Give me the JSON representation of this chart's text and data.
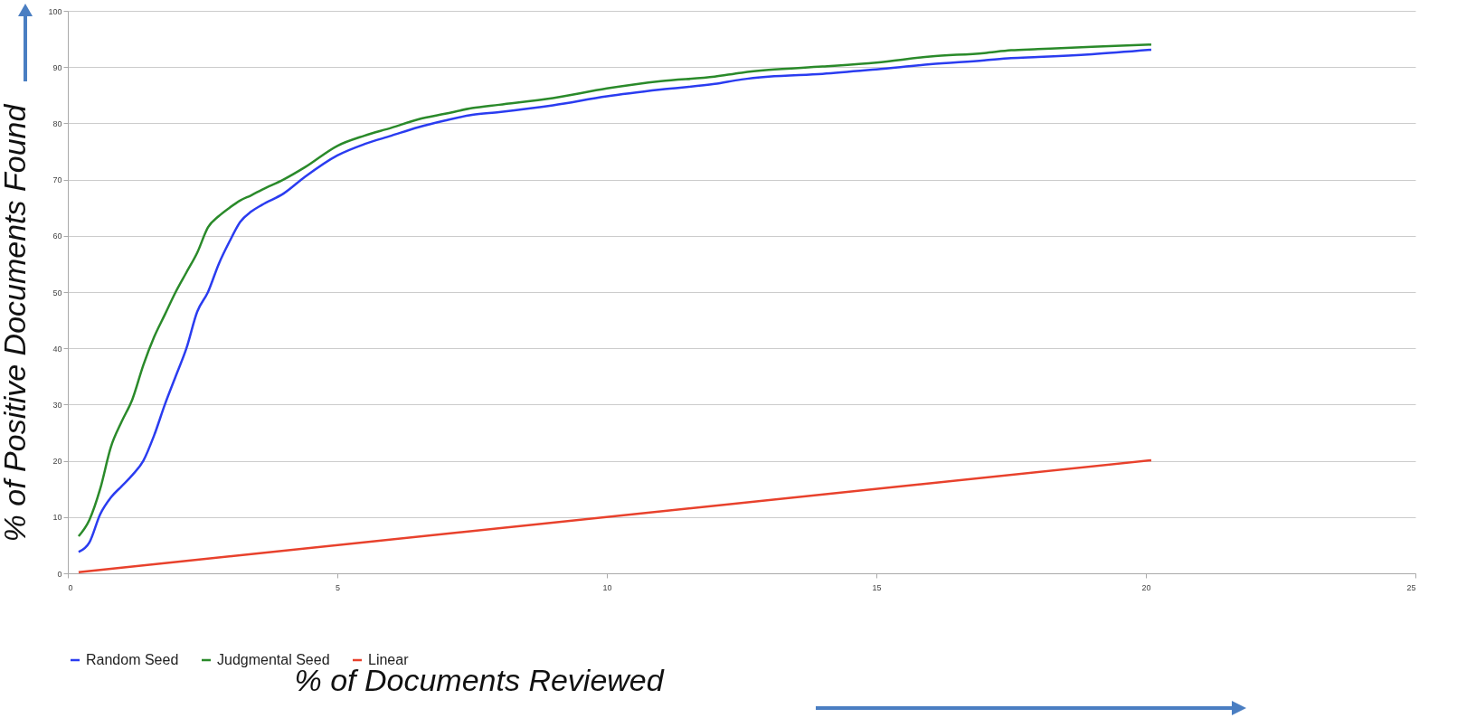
{
  "chart_data": {
    "type": "line",
    "xlabel": "% of Documents Reviewed",
    "ylabel": "% of Positive Documents Found",
    "xlim": [
      0,
      25
    ],
    "xticks": [
      0,
      5,
      10,
      15,
      20,
      25
    ],
    "ylim": [
      0,
      100
    ],
    "yticks": [
      0,
      10,
      20,
      30,
      40,
      50,
      60,
      70,
      80,
      90,
      100
    ],
    "grid": "y",
    "legend": "bottom",
    "marker": "none",
    "line_style": "solid",
    "series": [
      {
        "name": "Random Seed",
        "color": "#2a3cf0",
        "x": [
          0.2,
          0.4,
          0.6,
          0.8,
          1.0,
          1.2,
          1.4,
          1.6,
          1.8,
          2.0,
          2.2,
          2.4,
          2.6,
          2.8,
          3.0,
          3.2,
          3.4,
          3.6,
          4.0,
          4.4,
          5.0,
          5.5,
          6.0,
          6.5,
          7.0,
          7.5,
          8,
          9,
          10,
          11,
          12,
          12.5,
          13,
          14,
          15,
          16,
          17,
          17.5,
          18,
          19,
          20.1
        ],
        "values": [
          3.8,
          5.5,
          10.5,
          13.5,
          15.5,
          17.5,
          20,
          24.5,
          30,
          35,
          40,
          46.5,
          50,
          55,
          59,
          62.5,
          64.3,
          65.5,
          67.5,
          70.5,
          74.3,
          76.3,
          77.8,
          79.3,
          80.5,
          81.5,
          82,
          83.2,
          84.8,
          86,
          87,
          87.8,
          88.3,
          88.8,
          89.6,
          90.5,
          91.2,
          91.6,
          91.8,
          92.3,
          93.1
        ]
      },
      {
        "name": "Judgmental Seed",
        "color": "#2a8a2a",
        "x": [
          0.2,
          0.4,
          0.6,
          0.8,
          1.0,
          1.2,
          1.4,
          1.6,
          1.8,
          2.0,
          2.2,
          2.4,
          2.6,
          2.8,
          3.0,
          3.2,
          3.4,
          3.6,
          4.0,
          4.4,
          5.0,
          5.5,
          6.0,
          6.5,
          7.0,
          7.5,
          8,
          9,
          10,
          11,
          12,
          12.5,
          13,
          14,
          15,
          16,
          17,
          17.5,
          18,
          19,
          20.1
        ],
        "values": [
          6.6,
          9.5,
          15,
          22.5,
          27,
          31,
          37,
          42,
          46,
          50,
          53.5,
          57,
          61.5,
          63.5,
          65,
          66.3,
          67.2,
          68.2,
          70,
          72.2,
          76,
          77.8,
          79.2,
          80.7,
          81.7,
          82.7,
          83.3,
          84.5,
          86.2,
          87.5,
          88.3,
          89,
          89.5,
          90.1,
          90.8,
          91.9,
          92.5,
          93,
          93.2,
          93.6,
          94
        ]
      },
      {
        "name": "Linear",
        "color": "#e8412c",
        "x": [
          0.2,
          20.1
        ],
        "values": [
          0.2,
          20.1
        ]
      }
    ]
  }
}
